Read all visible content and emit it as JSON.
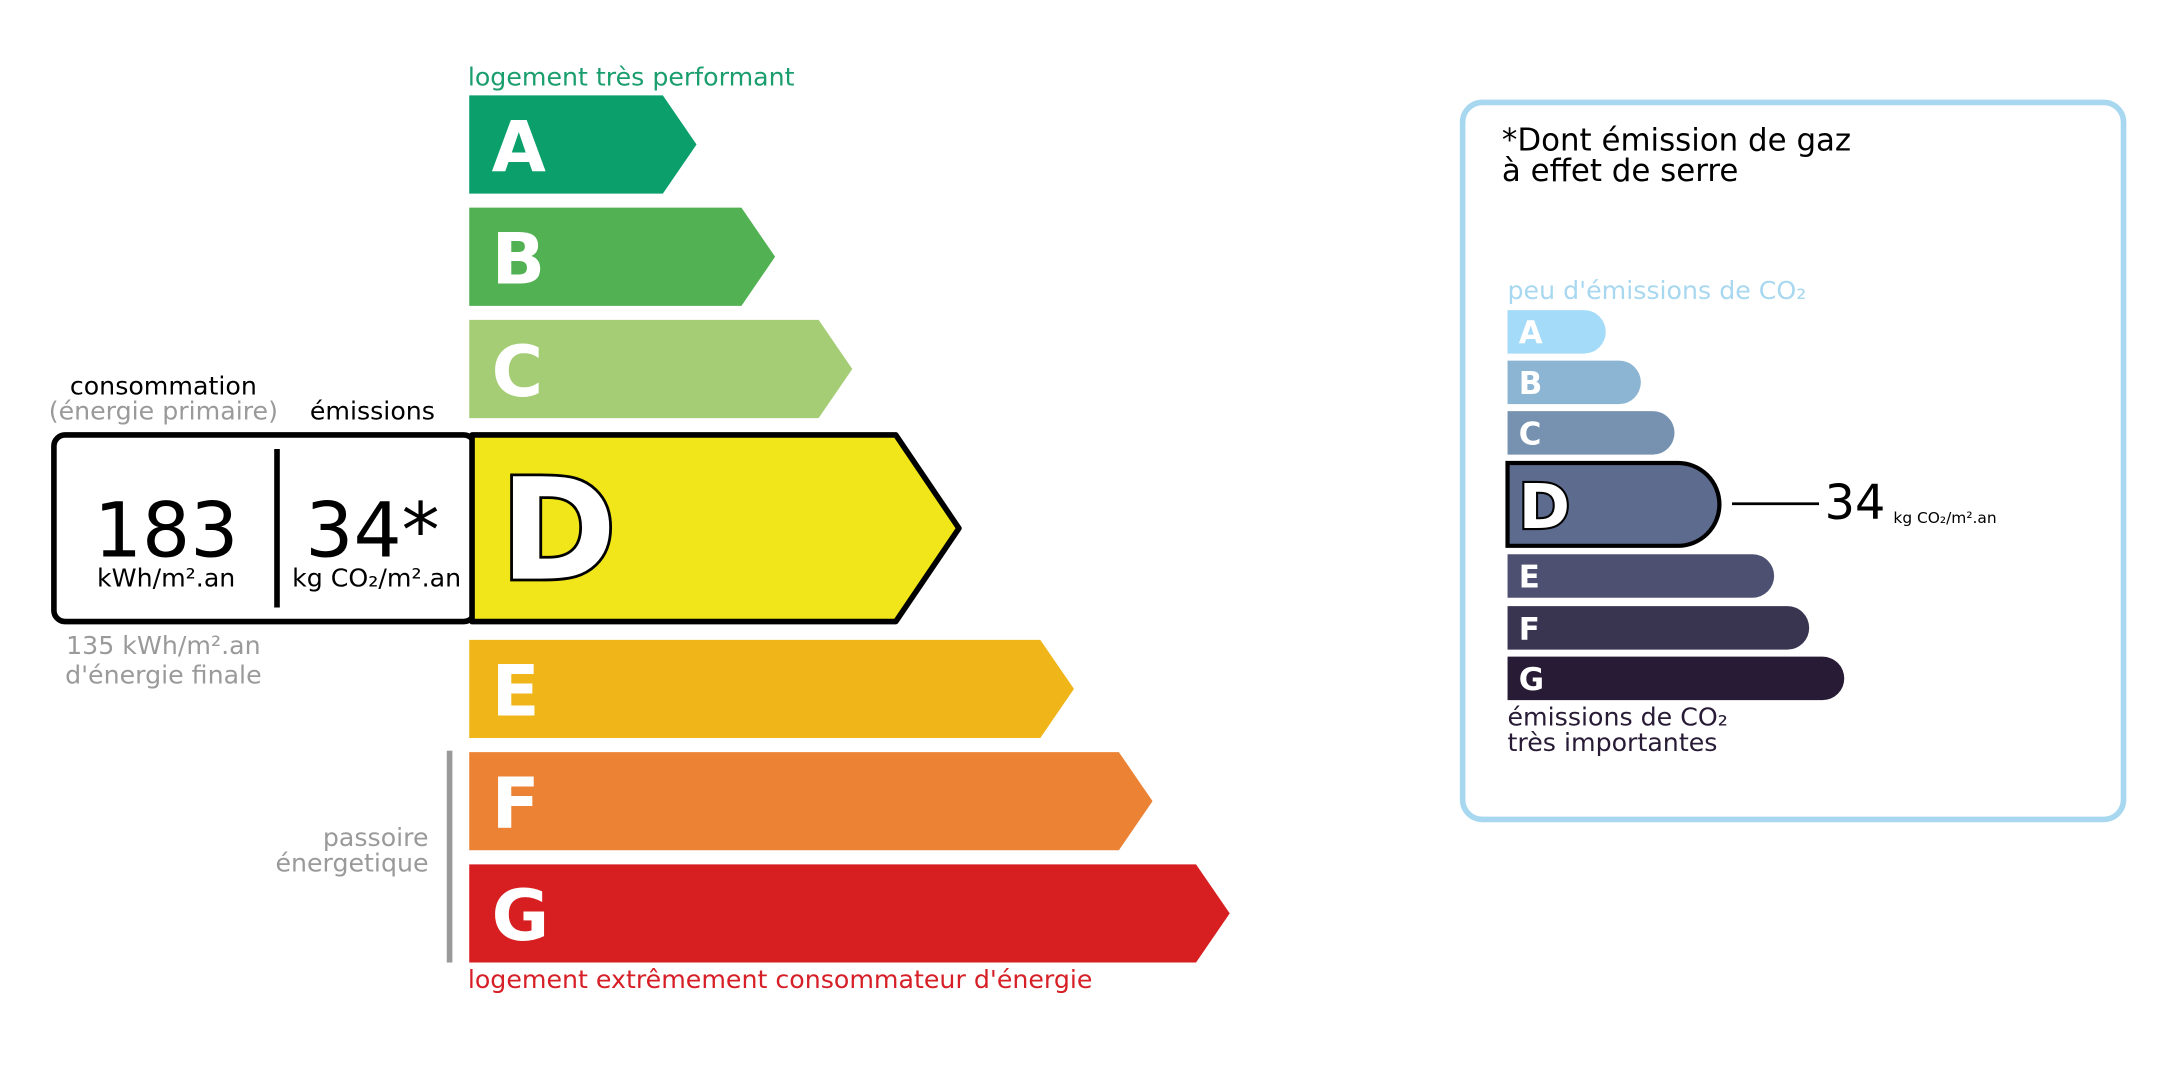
{
  "energy_label": {
    "top_label": "logement très performant",
    "bottom_label": "logement extrêmement consommateur d'énergie",
    "classes": [
      "A",
      "B",
      "C",
      "D",
      "E",
      "F",
      "G"
    ],
    "current_class_index": 3,
    "consumption_title": "consommation",
    "consumption_subtitle": "(énergie primaire)",
    "emissions_title": "émissions",
    "consumption_value": 183,
    "consumption_unit": "kWh/m².an",
    "emissions_value": "34*",
    "emissions_unit": "kg CO₂/m².an",
    "final_energy": [
      "135 kWh/m².an",
      "d'énergie finale"
    ],
    "passoire": [
      "passoire",
      "énergetique"
    ]
  },
  "ges_label": {
    "title": [
      "*Dont émission de gaz",
      "à effet de serre"
    ],
    "top_label": "peu d'émissions de CO₂",
    "classes": [
      "A",
      "B",
      "C",
      "D",
      "E",
      "F",
      "G"
    ],
    "current_class_index": 3,
    "value": 34,
    "unit": "kg CO₂/m².an",
    "bottom_label": [
      "émissions de CO₂",
      "très importantes"
    ]
  }
}
